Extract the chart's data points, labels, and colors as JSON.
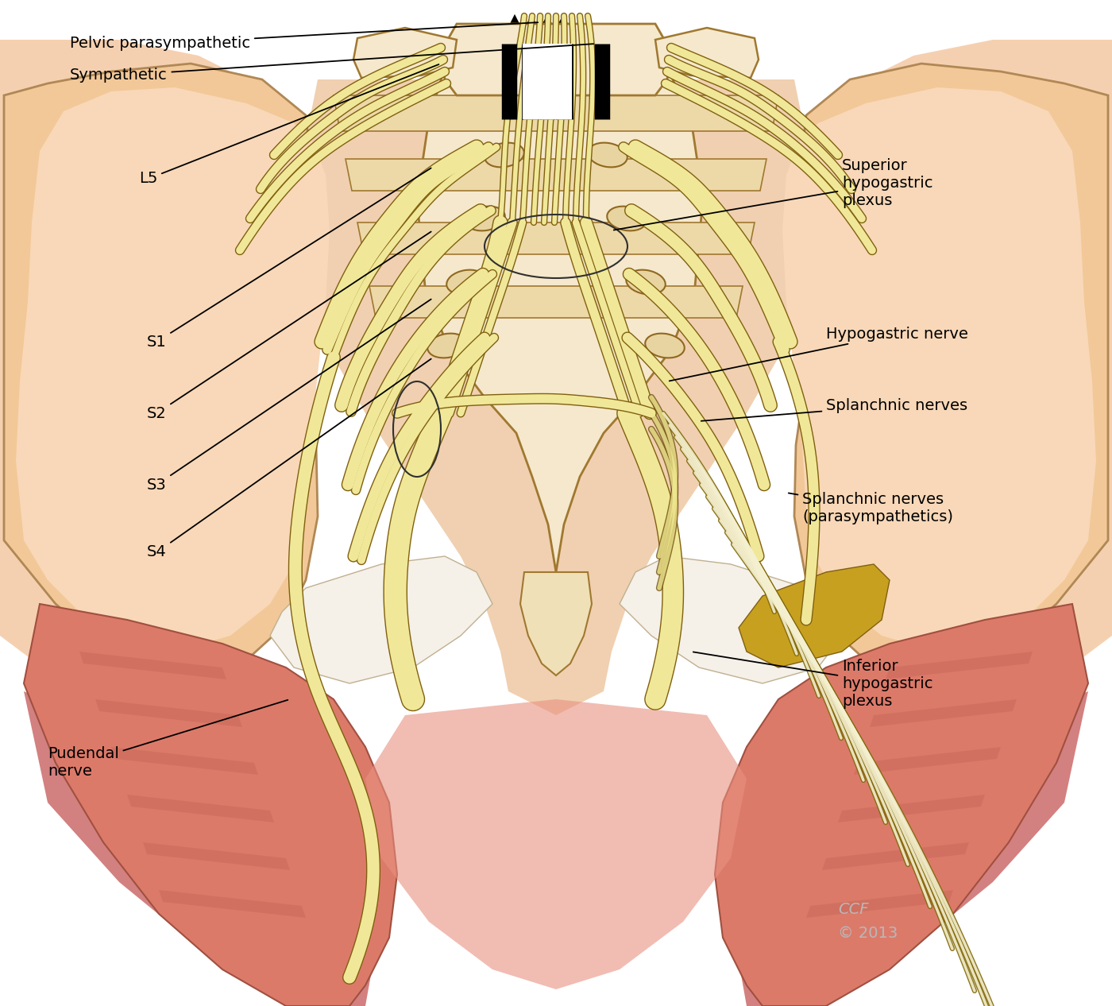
{
  "bg_color": "#ffffff",
  "skin_light": "#f5d5b8",
  "skin_mid": "#f0c090",
  "skin_dark": "#e8a870",
  "skin_shadow": "#d4906055",
  "muscle_light": "#e08878",
  "muscle_mid": "#cc6b5a",
  "muscle_dark": "#b85545",
  "muscle_stripe": "#c06050",
  "nerve_fill": "#f0e898",
  "nerve_dark": "#d4c060",
  "nerve_outline": "#806010",
  "bone_fill": "#f5e8cc",
  "bone_mid": "#edd8a8",
  "bone_dark": "#c8a860",
  "bone_outline": "#a07830",
  "ligament_fill": "#d4b840",
  "white_tissue": "#f8f0e0",
  "label_color": "#000000",
  "arrow_black": "#000000",
  "ccf_color": "#b8b8b8",
  "figure_size": [
    14.0,
    12.66
  ],
  "dpi": 100,
  "labels": {
    "pelvic_parasympathetic": "Pelvic parasympathetic",
    "sympathetic": "Sympathetic",
    "L5": "L5",
    "S1": "S1",
    "S2": "S2",
    "S3": "S3",
    "S4": "S4",
    "superior_hypogastric": "Superior\nhypogastric\nplexus",
    "hypogastric_nerve": "Hypogastric nerve",
    "splanchnic_nerves": "Splanchnic nerves",
    "splanchnic_parasym": "Splanchnic nerves\n(parasympathetics)",
    "inferior_hypogastric": "Inferior\nhypogastric\nplexus",
    "pudendal_nerve": "Pudendal\nnerve",
    "ccf": "CCF",
    "year": "© 2013"
  },
  "label_fontsize": 14
}
